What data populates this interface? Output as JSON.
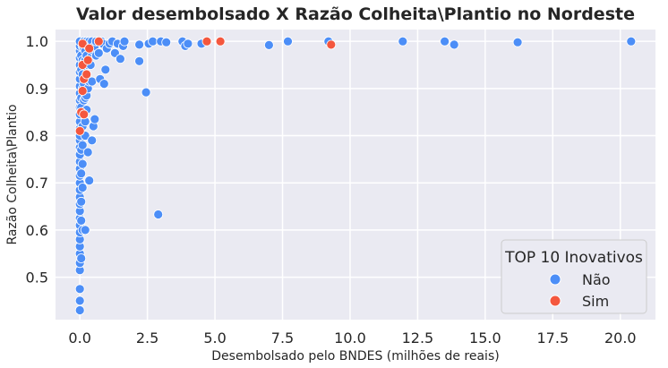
{
  "chart_data": {
    "type": "scatter",
    "title": "Valor desembolsado X Razão Colheita\\Plantio no Nordeste",
    "xlabel": "Desembolsado pelo BNDES (milhões de reais)",
    "ylabel": "Razão Colheita\\Plantio",
    "xlim": [
      -0.9,
      21.3
    ],
    "ylim": [
      0.41,
      1.025
    ],
    "xticks": [
      0.0,
      2.5,
      5.0,
      7.5,
      10.0,
      12.5,
      15.0,
      17.5,
      20.0
    ],
    "xtick_labels": [
      "0.0",
      "2.5",
      "5.0",
      "7.5",
      "10.0",
      "12.5",
      "15.0",
      "17.5",
      "20.0"
    ],
    "yticks": [
      0.5,
      0.6,
      0.7,
      0.8,
      0.9,
      1.0
    ],
    "ytick_labels": [
      "0.5",
      "0.6",
      "0.7",
      "0.8",
      "0.9",
      "1.0"
    ],
    "grid": true,
    "legend": {
      "title": "TOP 10 Inovativos",
      "placement": "bottom-right"
    },
    "series": [
      {
        "name": "Não",
        "color": "#4c8ef7",
        "points": [
          [
            0.0,
            0.43
          ],
          [
            0.0,
            0.45
          ],
          [
            0.0,
            0.475
          ],
          [
            0.0,
            0.515
          ],
          [
            0.0,
            0.53
          ],
          [
            0.0,
            0.55
          ],
          [
            0.0,
            0.565
          ],
          [
            0.0,
            0.58
          ],
          [
            0.0,
            0.595
          ],
          [
            0.0,
            0.61
          ],
          [
            0.0,
            0.625
          ],
          [
            0.0,
            0.64
          ],
          [
            0.0,
            0.655
          ],
          [
            0.0,
            0.67
          ],
          [
            0.0,
            0.685
          ],
          [
            0.0,
            0.7
          ],
          [
            0.0,
            0.715
          ],
          [
            0.0,
            0.73
          ],
          [
            0.0,
            0.745
          ],
          [
            0.0,
            0.76
          ],
          [
            0.0,
            0.775
          ],
          [
            0.0,
            0.79
          ],
          [
            0.0,
            0.8
          ],
          [
            0.0,
            0.815
          ],
          [
            0.0,
            0.83
          ],
          [
            0.0,
            0.845
          ],
          [
            0.0,
            0.86
          ],
          [
            0.0,
            0.875
          ],
          [
            0.0,
            0.89
          ],
          [
            0.0,
            0.905
          ],
          [
            0.0,
            0.92
          ],
          [
            0.0,
            0.935
          ],
          [
            0.0,
            0.95
          ],
          [
            0.0,
            0.965
          ],
          [
            0.0,
            0.98
          ],
          [
            0.0,
            0.99
          ],
          [
            0.0,
            1.0
          ],
          [
            0.05,
            0.54
          ],
          [
            0.05,
            0.62
          ],
          [
            0.05,
            0.66
          ],
          [
            0.05,
            0.72
          ],
          [
            0.05,
            0.77
          ],
          [
            0.05,
            0.81
          ],
          [
            0.05,
            0.86
          ],
          [
            0.05,
            0.88
          ],
          [
            0.05,
            0.94
          ],
          [
            0.05,
            0.97
          ],
          [
            0.1,
            0.6
          ],
          [
            0.1,
            0.69
          ],
          [
            0.1,
            0.74
          ],
          [
            0.1,
            0.78
          ],
          [
            0.1,
            0.82
          ],
          [
            0.1,
            0.85
          ],
          [
            0.1,
            0.9
          ],
          [
            0.1,
            0.93
          ],
          [
            0.1,
            0.96
          ],
          [
            0.1,
            0.99
          ],
          [
            0.15,
            0.845
          ],
          [
            0.15,
            0.875
          ],
          [
            0.15,
            0.91
          ],
          [
            0.15,
            0.955
          ],
          [
            0.15,
            0.985
          ],
          [
            0.15,
            1.0
          ],
          [
            0.2,
            0.6
          ],
          [
            0.2,
            0.8
          ],
          [
            0.2,
            0.83
          ],
          [
            0.2,
            0.88
          ],
          [
            0.2,
            0.92
          ],
          [
            0.2,
            0.96
          ],
          [
            0.2,
            0.98
          ],
          [
            0.25,
            0.855
          ],
          [
            0.25,
            0.885
          ],
          [
            0.25,
            0.93
          ],
          [
            0.25,
            0.97
          ],
          [
            0.25,
            1.0
          ],
          [
            0.3,
            0.765
          ],
          [
            0.3,
            0.9
          ],
          [
            0.3,
            0.95
          ],
          [
            0.3,
            0.99
          ],
          [
            0.35,
            0.705
          ],
          [
            0.35,
            0.915
          ],
          [
            0.35,
            0.96
          ],
          [
            0.35,
            1.0
          ],
          [
            0.4,
            0.95
          ],
          [
            0.4,
            0.99
          ],
          [
            0.45,
            0.79
          ],
          [
            0.45,
            0.915
          ],
          [
            0.45,
            0.97
          ],
          [
            0.45,
            1.0
          ],
          [
            0.5,
            0.82
          ],
          [
            0.5,
            0.98
          ],
          [
            0.55,
            0.835
          ],
          [
            0.55,
            0.99
          ],
          [
            0.6,
            0.97
          ],
          [
            0.6,
            1.0
          ],
          [
            0.7,
            0.975
          ],
          [
            0.75,
            0.92
          ],
          [
            0.8,
            1.0
          ],
          [
            0.85,
            0.995
          ],
          [
            0.9,
            0.91
          ],
          [
            0.95,
            0.94
          ],
          [
            1.0,
            0.985
          ],
          [
            1.1,
            0.995
          ],
          [
            1.2,
            1.0
          ],
          [
            1.3,
            0.975
          ],
          [
            1.4,
            0.995
          ],
          [
            1.5,
            0.963
          ],
          [
            1.6,
            0.99
          ],
          [
            1.65,
            1.0
          ],
          [
            2.2,
            0.993
          ],
          [
            2.2,
            0.958
          ],
          [
            2.45,
            0.892
          ],
          [
            2.55,
            0.995
          ],
          [
            2.7,
            1.0
          ],
          [
            2.9,
            0.633
          ],
          [
            3.0,
            1.0
          ],
          [
            3.2,
            0.998
          ],
          [
            3.8,
            1.0
          ],
          [
            3.9,
            0.99
          ],
          [
            4.0,
            0.995
          ],
          [
            4.5,
            0.995
          ],
          [
            7.0,
            0.992
          ],
          [
            7.7,
            1.0
          ],
          [
            9.2,
            1.0
          ],
          [
            11.95,
            1.0
          ],
          [
            13.5,
            1.0
          ],
          [
            13.85,
            0.993
          ],
          [
            16.2,
            0.998
          ],
          [
            20.4,
            1.0
          ]
        ]
      },
      {
        "name": "Sim",
        "color": "#f4573e",
        "points": [
          [
            0.0,
            0.81
          ],
          [
            0.05,
            0.85
          ],
          [
            0.1,
            0.895
          ],
          [
            0.1,
            0.95
          ],
          [
            0.1,
            0.995
          ],
          [
            0.15,
            0.845
          ],
          [
            0.15,
            0.92
          ],
          [
            0.25,
            0.93
          ],
          [
            0.3,
            0.96
          ],
          [
            0.35,
            0.985
          ],
          [
            0.7,
            1.0
          ],
          [
            4.7,
            1.0
          ],
          [
            5.2,
            1.0
          ],
          [
            9.3,
            0.993
          ]
        ]
      }
    ]
  }
}
